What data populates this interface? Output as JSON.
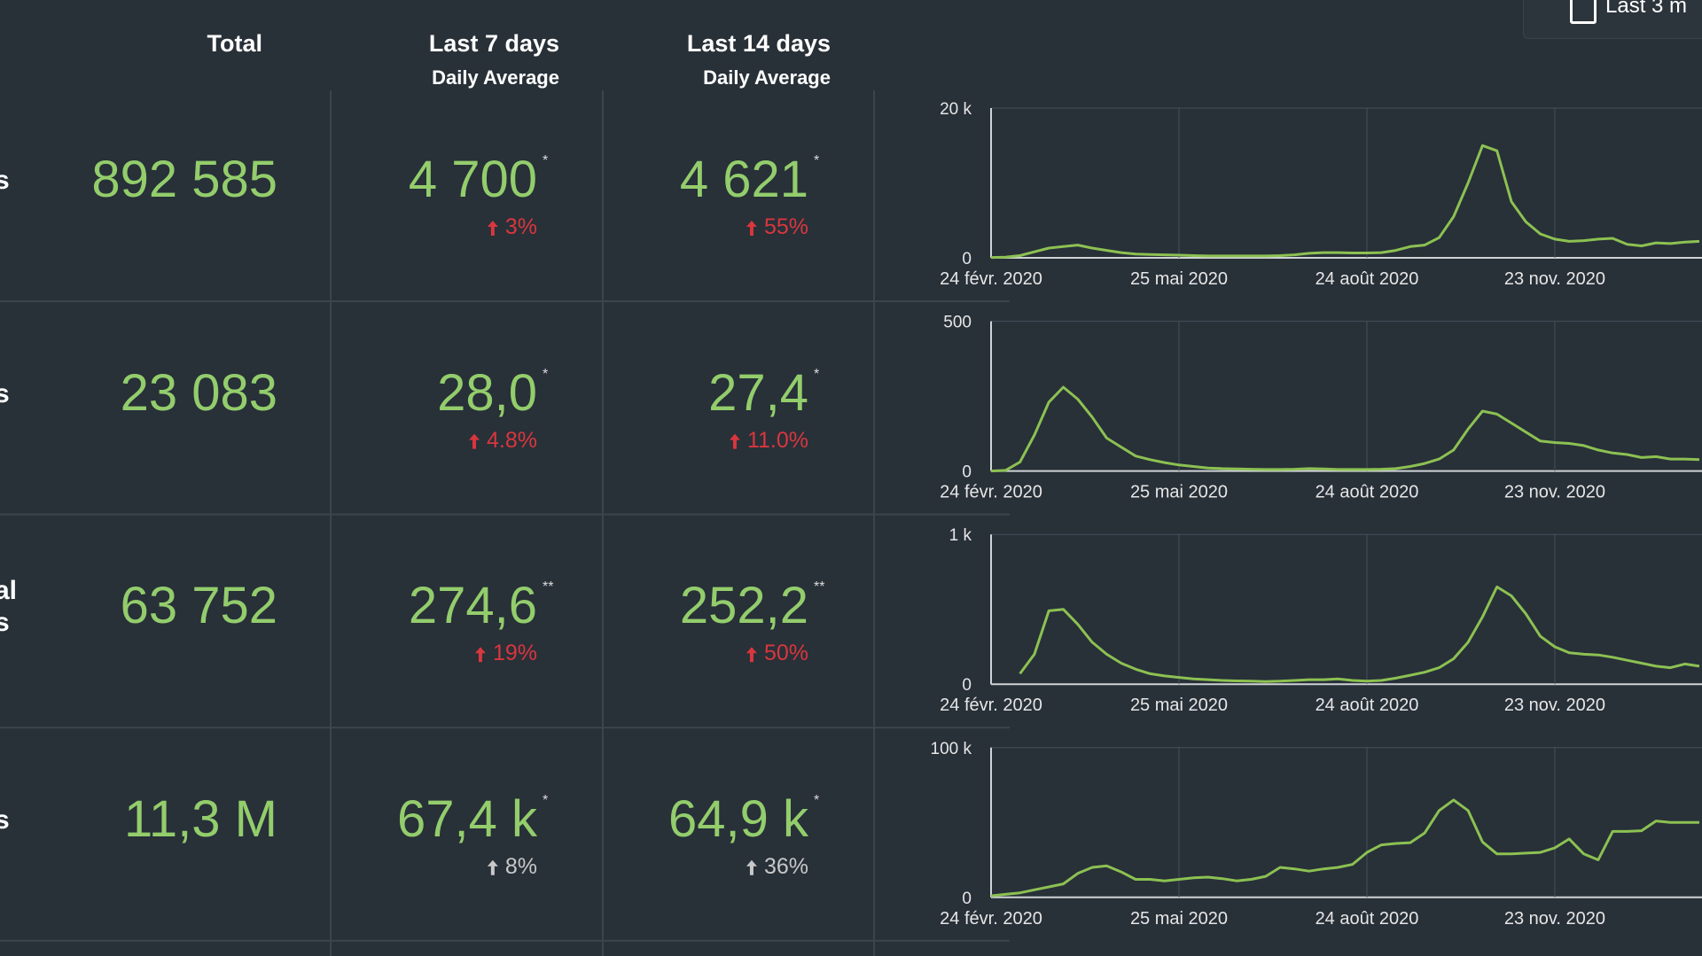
{
  "top_right": "Last 3 m",
  "headers": [
    {
      "title": "Total"
    },
    {
      "title": "Last 7 days",
      "subtitle": "Daily Average"
    },
    {
      "title": "Last 14 days",
      "subtitle": "Daily Average"
    }
  ],
  "rows": [
    {
      "label": [
        "s"
      ],
      "total": "892 585",
      "last7": {
        "value": "4 700",
        "note": "*",
        "change": "3%",
        "change_color": "#d9363e"
      },
      "last14": {
        "value": "4 621",
        "note": "*",
        "change": "55%",
        "change_color": "#d9363e"
      },
      "chart": {
        "type": "line",
        "color": "#8cc152",
        "xlim": [
          0,
          49
        ],
        "ylim": [
          0,
          20000
        ],
        "yticks": [
          0,
          {
            "value": 20000,
            "label": "20 k"
          }
        ],
        "xticks": [
          {
            "value": 0,
            "label": "24 févr. 2020"
          },
          {
            "value": 13,
            "label": "25 mai 2020"
          },
          {
            "value": 26,
            "label": "24 août 2020"
          },
          {
            "value": 39,
            "label": "23 nov. 2020"
          }
        ],
        "x": [
          0,
          1,
          2,
          3,
          4,
          5,
          6,
          7,
          8,
          9,
          10,
          11,
          12,
          13,
          14,
          15,
          16,
          17,
          18,
          19,
          20,
          21,
          22,
          23,
          24,
          25,
          26,
          27,
          28,
          29,
          30,
          31,
          32,
          33,
          34,
          35,
          36,
          37,
          38,
          39,
          40,
          41,
          42,
          43,
          44,
          45,
          46,
          47,
          48,
          49
        ],
        "values": [
          50,
          100,
          300,
          800,
          1300,
          1500,
          1700,
          1300,
          1000,
          700,
          500,
          450,
          400,
          350,
          300,
          250,
          250,
          250,
          250,
          250,
          300,
          400,
          600,
          700,
          700,
          650,
          650,
          700,
          1000,
          1500,
          1700,
          2700,
          5500,
          10000,
          15000,
          14300,
          7500,
          4800,
          3200,
          2500,
          2200,
          2300,
          2500,
          2600,
          1800,
          1600,
          2000,
          1900,
          2100,
          2200
        ]
      }
    },
    {
      "label": [
        "s"
      ],
      "total": "23 083",
      "last7": {
        "value": "28,0",
        "note": "*",
        "change": "4.8%",
        "change_color": "#d9363e"
      },
      "last14": {
        "value": "27,4",
        "note": "*",
        "change": "11.0%",
        "change_color": "#d9363e"
      },
      "chart": {
        "type": "line",
        "color": "#8cc152",
        "xlim": [
          0,
          49
        ],
        "ylim": [
          0,
          500
        ],
        "yticks": [
          0,
          500
        ],
        "xticks": [
          {
            "value": 0,
            "label": "24 févr. 2020"
          },
          {
            "value": 13,
            "label": "25 mai 2020"
          },
          {
            "value": 26,
            "label": "24 août 2020"
          },
          {
            "value": 39,
            "label": "23 nov. 2020"
          }
        ],
        "x": [
          0,
          1,
          2,
          3,
          4,
          5,
          6,
          7,
          8,
          9,
          10,
          11,
          12,
          13,
          14,
          15,
          16,
          17,
          18,
          19,
          20,
          21,
          22,
          23,
          24,
          25,
          26,
          27,
          28,
          29,
          30,
          31,
          32,
          33,
          34,
          35,
          36,
          37,
          38,
          39,
          40,
          41,
          42,
          43,
          44,
          45,
          46,
          47,
          48,
          49
        ],
        "values": [
          0,
          2,
          30,
          120,
          230,
          280,
          240,
          180,
          110,
          80,
          50,
          38,
          28,
          20,
          15,
          10,
          8,
          7,
          6,
          5,
          5,
          6,
          8,
          7,
          5,
          5,
          5,
          6,
          8,
          15,
          25,
          40,
          70,
          140,
          200,
          190,
          160,
          130,
          100,
          95,
          92,
          85,
          70,
          60,
          55,
          45,
          48,
          40,
          40,
          38
        ]
      }
    },
    {
      "label": [
        "al",
        "s"
      ],
      "total": "63 752",
      "last7": {
        "value": "274,6",
        "note": "**",
        "change": "19%",
        "change_color": "#d9363e"
      },
      "last14": {
        "value": "252,2",
        "note": "**",
        "change": "50%",
        "change_color": "#d9363e"
      },
      "chart": {
        "type": "line",
        "color": "#8cc152",
        "xlim": [
          0,
          49
        ],
        "ylim": [
          0,
          1000
        ],
        "yticks": [
          0,
          {
            "value": 1000,
            "label": "1 k"
          }
        ],
        "xticks": [
          {
            "value": 0,
            "label": "24 févr. 2020"
          },
          {
            "value": 13,
            "label": "25 mai 2020"
          },
          {
            "value": 26,
            "label": "24 août 2020"
          },
          {
            "value": 39,
            "label": "23 nov. 2020"
          }
        ],
        "x": [
          0,
          1,
          2,
          3,
          4,
          5,
          6,
          7,
          8,
          9,
          10,
          11,
          12,
          13,
          14,
          15,
          16,
          17,
          18,
          19,
          20,
          21,
          22,
          23,
          24,
          25,
          26,
          27,
          28,
          29,
          30,
          31,
          32,
          33,
          34,
          35,
          36,
          37,
          38,
          39,
          40,
          41,
          42,
          43,
          44,
          45,
          46,
          47,
          48,
          49
        ],
        "values": [
          null,
          null,
          70,
          200,
          490,
          500,
          400,
          280,
          200,
          140,
          100,
          70,
          55,
          45,
          35,
          30,
          25,
          22,
          20,
          18,
          20,
          25,
          30,
          30,
          35,
          25,
          20,
          25,
          40,
          60,
          80,
          110,
          170,
          280,
          450,
          650,
          590,
          470,
          320,
          250,
          210,
          200,
          195,
          180,
          160,
          140,
          120,
          110,
          135,
          120
        ]
      }
    },
    {
      "label": [
        "s"
      ],
      "total": "11,3 M",
      "last7": {
        "value": "67,4 k",
        "note": "*",
        "change": "8%",
        "change_color": "#c8c8c8"
      },
      "last14": {
        "value": "64,9 k",
        "note": "*",
        "change": "36%",
        "change_color": "#c8c8c8"
      },
      "chart": {
        "type": "line",
        "color": "#8cc152",
        "xlim": [
          0,
          49
        ],
        "ylim": [
          0,
          100000
        ],
        "yticks": [
          0,
          {
            "value": 100000,
            "label": "100 k"
          }
        ],
        "xticks": [
          {
            "value": 0,
            "label": "24 févr. 2020"
          },
          {
            "value": 13,
            "label": "25 mai 2020"
          },
          {
            "value": 26,
            "label": "24 août 2020"
          },
          {
            "value": 39,
            "label": "23 nov. 2020"
          }
        ],
        "x": [
          0,
          1,
          2,
          3,
          4,
          5,
          6,
          7,
          8,
          9,
          10,
          11,
          12,
          13,
          14,
          15,
          16,
          17,
          18,
          19,
          20,
          21,
          22,
          23,
          24,
          25,
          26,
          27,
          28,
          29,
          30,
          31,
          32,
          33,
          34,
          35,
          36,
          37,
          38,
          39,
          40,
          41,
          42,
          43,
          44,
          45,
          46,
          47,
          48,
          49
        ],
        "values": [
          1000,
          2000,
          3000,
          5000,
          7000,
          9000,
          16000,
          20000,
          21000,
          17000,
          12000,
          12000,
          11000,
          12000,
          13000,
          13500,
          12500,
          11000,
          12000,
          14000,
          20000,
          19000,
          17500,
          19000,
          20000,
          22000,
          30000,
          35000,
          36000,
          36500,
          43000,
          58000,
          65000,
          58000,
          37000,
          29000,
          29000,
          29500,
          30000,
          33000,
          39000,
          29000,
          25000,
          44000,
          44000,
          44500,
          51000,
          50000,
          50000,
          50000
        ]
      }
    }
  ]
}
